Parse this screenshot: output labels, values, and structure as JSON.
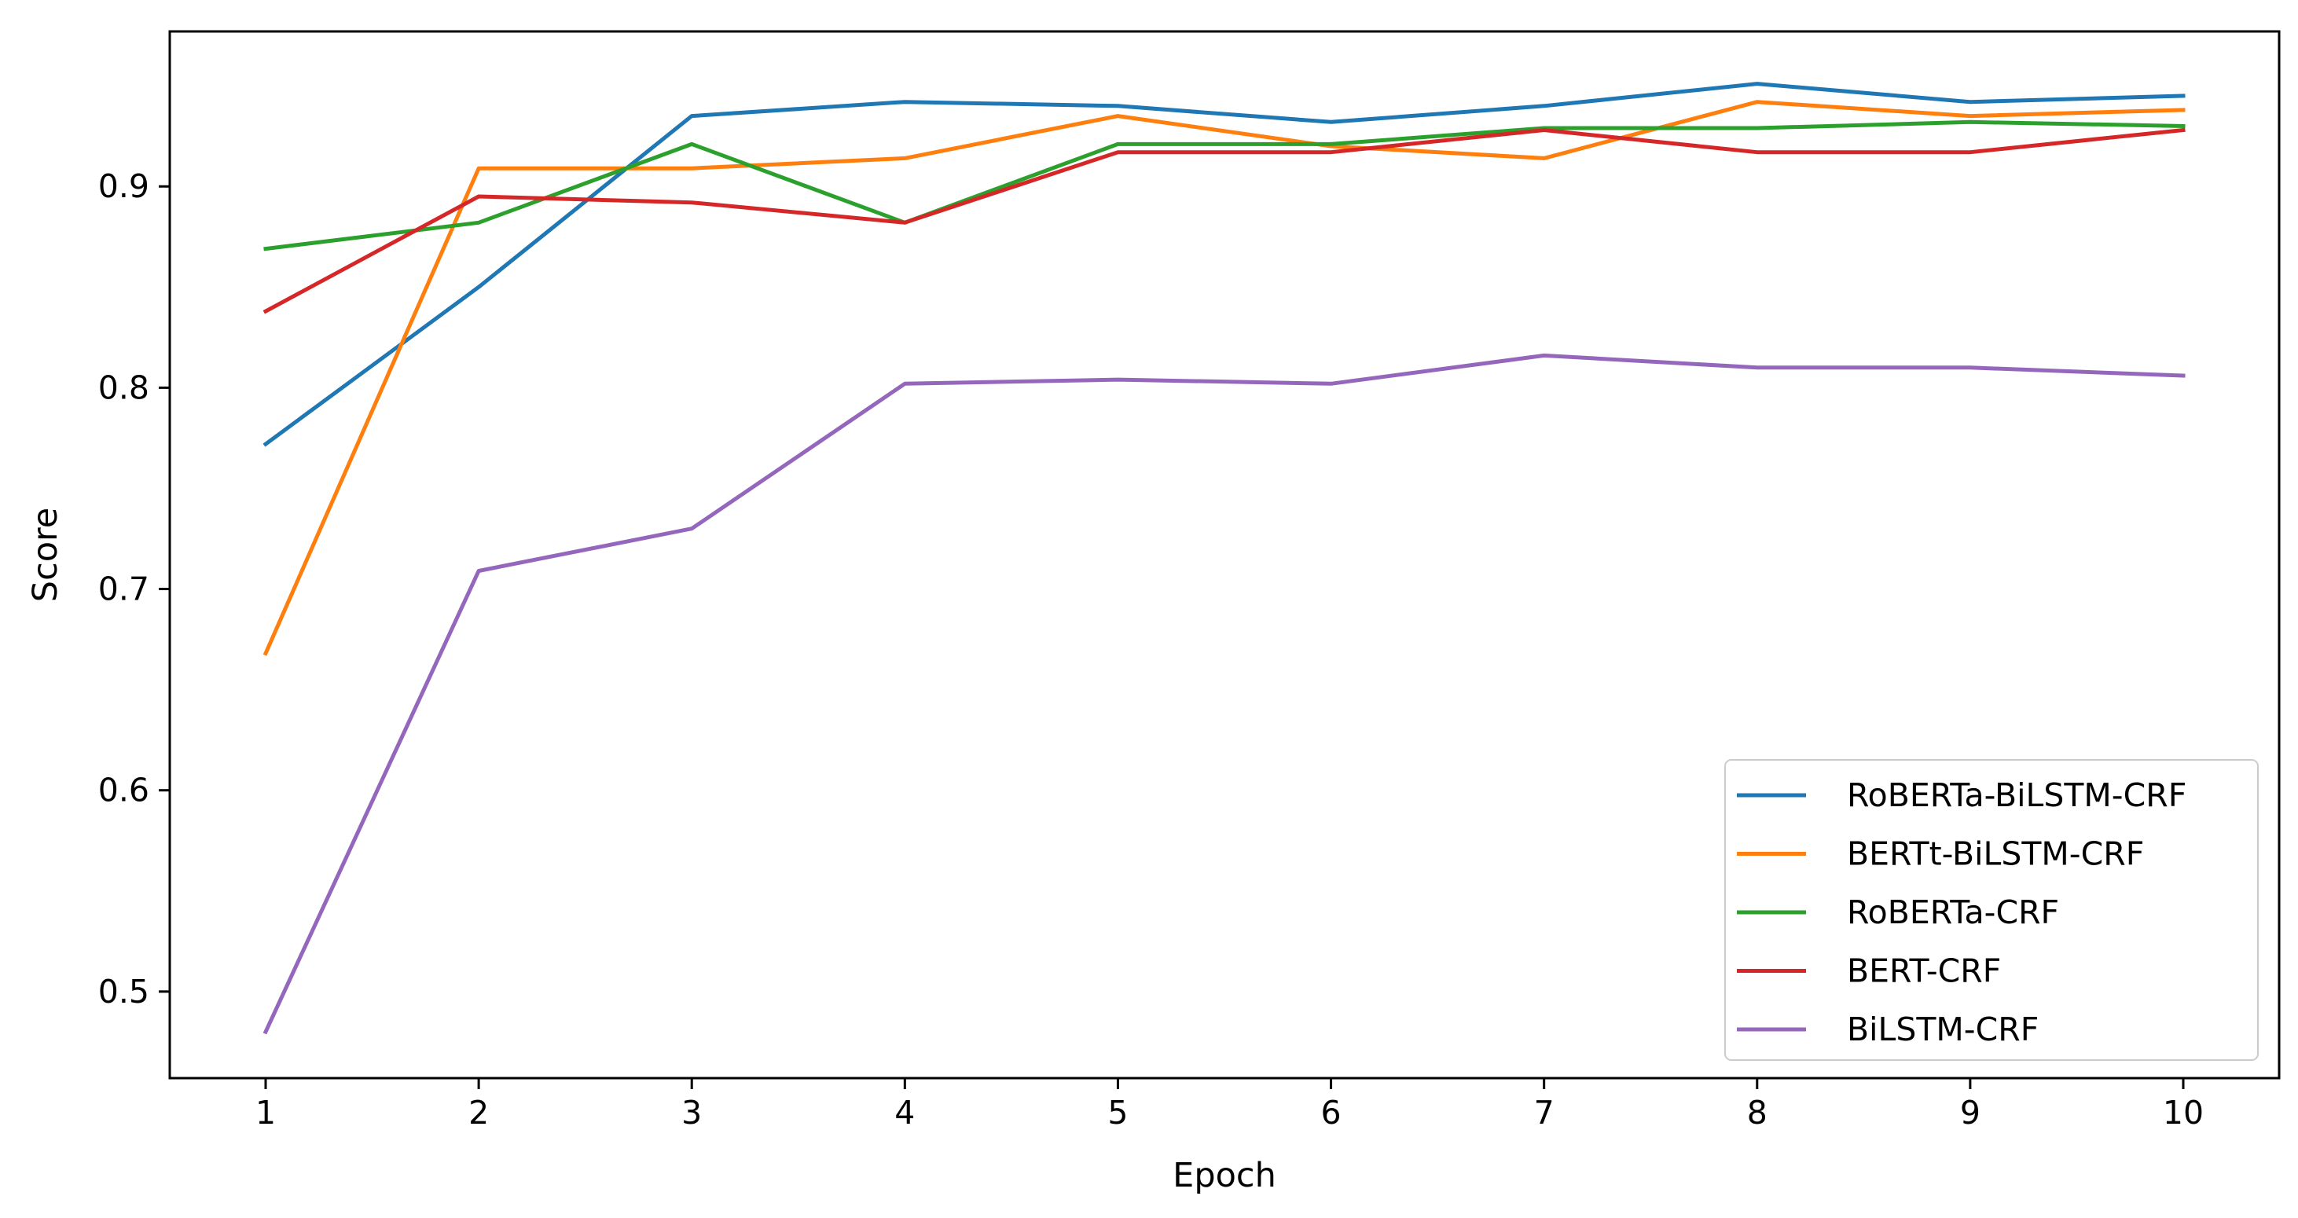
{
  "chart_data": {
    "type": "line",
    "title": "",
    "xlabel": "Epoch",
    "ylabel": "Score",
    "x": [
      1,
      2,
      3,
      4,
      5,
      6,
      7,
      8,
      9,
      10
    ],
    "xticks": [
      "1",
      "2",
      "3",
      "4",
      "5",
      "6",
      "7",
      "8",
      "9",
      "10"
    ],
    "yticks": [
      0.5,
      0.6,
      0.7,
      0.8,
      0.9
    ],
    "ytick_labels": [
      "0.5",
      "0.6",
      "0.7",
      "0.8",
      "0.9"
    ],
    "xlim": [
      0.55,
      10.45
    ],
    "ylim": [
      0.457,
      0.977
    ],
    "grid": false,
    "legend_position": "lower-right",
    "series": [
      {
        "name": "RoBERTa-BiLSTM-CRF",
        "color": "#1f77b4",
        "values": [
          0.772,
          0.85,
          0.935,
          0.942,
          0.94,
          0.932,
          0.94,
          0.951,
          0.942,
          0.945
        ]
      },
      {
        "name": "BERTt-BiLSTM-CRF",
        "color": "#ff7f0e",
        "values": [
          0.668,
          0.909,
          0.909,
          0.914,
          0.935,
          0.92,
          0.914,
          0.942,
          0.935,
          0.938
        ]
      },
      {
        "name": "RoBERTa-CRF",
        "color": "#2ca02c",
        "values": [
          0.869,
          0.882,
          0.921,
          0.882,
          0.921,
          0.921,
          0.929,
          0.929,
          0.932,
          0.93
        ]
      },
      {
        "name": "BERT-CRF",
        "color": "#d62728",
        "values": [
          0.838,
          0.895,
          0.892,
          0.882,
          0.917,
          0.917,
          0.928,
          0.917,
          0.917,
          0.928
        ]
      },
      {
        "name": "BiLSTM-CRF",
        "color": "#9467bd",
        "values": [
          0.48,
          0.709,
          0.73,
          0.802,
          0.804,
          0.802,
          0.816,
          0.81,
          0.81,
          0.806
        ]
      }
    ]
  }
}
